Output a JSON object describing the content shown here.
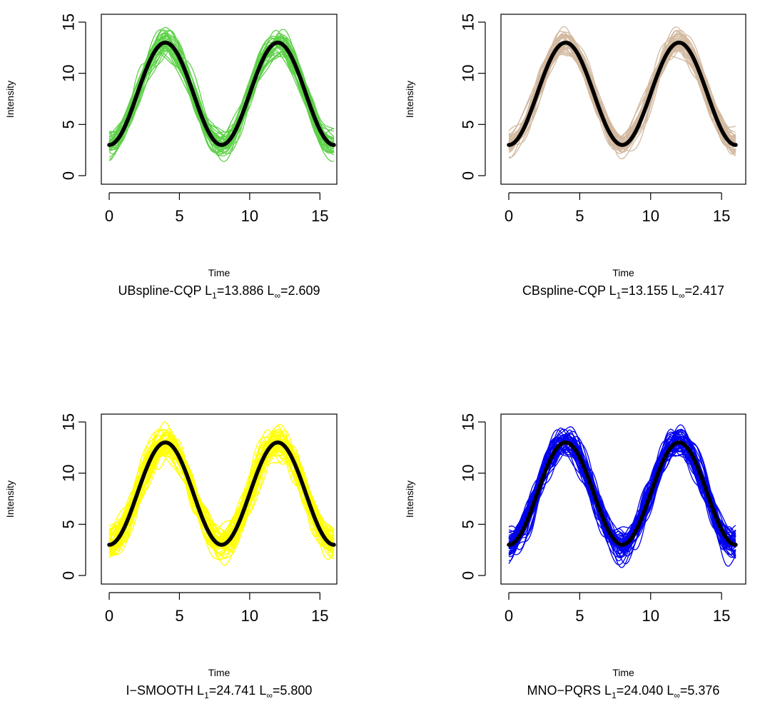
{
  "chart_data": [
    {
      "type": "line",
      "method": "UBspline-CQP",
      "l1_label": "L",
      "l1_sub": "1",
      "l1_value": "13.886",
      "linf_label": "L",
      "linf_sub": "∞",
      "linf_value": "2.609",
      "xlabel": "Time",
      "ylabel": "Intensity",
      "xticks": [
        "0",
        "5",
        "10",
        "15"
      ],
      "yticks": [
        "0",
        "5",
        "10",
        "15"
      ],
      "xlim": [
        0,
        16
      ],
      "ylim": [
        0,
        15
      ],
      "sample_color": "#5fd14a",
      "mean_color": "#000000",
      "true_curve": {
        "baseline": 8,
        "amplitude": 5,
        "period": 8,
        "phase_start": 0,
        "x_range": [
          0,
          16
        ]
      },
      "spread": 1.6,
      "n_samples": 40
    },
    {
      "type": "line",
      "method": "CBspline-CQP",
      "l1_label": "L",
      "l1_sub": "1",
      "l1_value": "13.155",
      "linf_label": "L",
      "linf_sub": "∞",
      "linf_value": "2.417",
      "xlabel": "Time",
      "ylabel": "Intensity",
      "xticks": [
        "0",
        "5",
        "10",
        "15"
      ],
      "yticks": [
        "0",
        "5",
        "10",
        "15"
      ],
      "xlim": [
        0,
        16
      ],
      "ylim": [
        0,
        15
      ],
      "sample_color": "#d2b9a0",
      "mean_color": "#000000",
      "true_curve": {
        "baseline": 8,
        "amplitude": 5,
        "period": 8,
        "phase_start": 0,
        "x_range": [
          0,
          16
        ]
      },
      "spread": 1.5,
      "n_samples": 40
    },
    {
      "type": "line",
      "method": "I−SMOOTH",
      "l1_label": "L",
      "l1_sub": "1",
      "l1_value": "24.741",
      "linf_label": "L",
      "linf_sub": "∞",
      "linf_value": "5.800",
      "xlabel": "Time",
      "ylabel": "Intensity",
      "xticks": [
        "0",
        "5",
        "10",
        "15"
      ],
      "yticks": [
        "0",
        "5",
        "10",
        "15"
      ],
      "xlim": [
        0,
        16
      ],
      "ylim": [
        0,
        15
      ],
      "sample_color": "#ffff00",
      "mean_color": "#000000",
      "true_curve": {
        "baseline": 8,
        "amplitude": 5,
        "period": 8,
        "phase_start": 0,
        "x_range": [
          0,
          16
        ]
      },
      "spread": 2.6,
      "n_samples": 50
    },
    {
      "type": "line",
      "method": "MNO−PQRS",
      "l1_label": "L",
      "l1_sub": "1",
      "l1_value": "24.040",
      "linf_label": "L",
      "linf_sub": "∞",
      "linf_value": "5.376",
      "xlabel": "Time",
      "ylabel": "Intensity",
      "xticks": [
        "0",
        "5",
        "10",
        "15"
      ],
      "yticks": [
        "0",
        "5",
        "10",
        "15"
      ],
      "xlim": [
        0,
        16
      ],
      "ylim": [
        0,
        15
      ],
      "sample_color": "#0000ee",
      "mean_color": "#000000",
      "true_curve": {
        "baseline": 8,
        "amplitude": 5,
        "period": 8,
        "phase_start": 0,
        "x_range": [
          0,
          16
        ]
      },
      "spread": 2.4,
      "n_samples": 50
    }
  ]
}
